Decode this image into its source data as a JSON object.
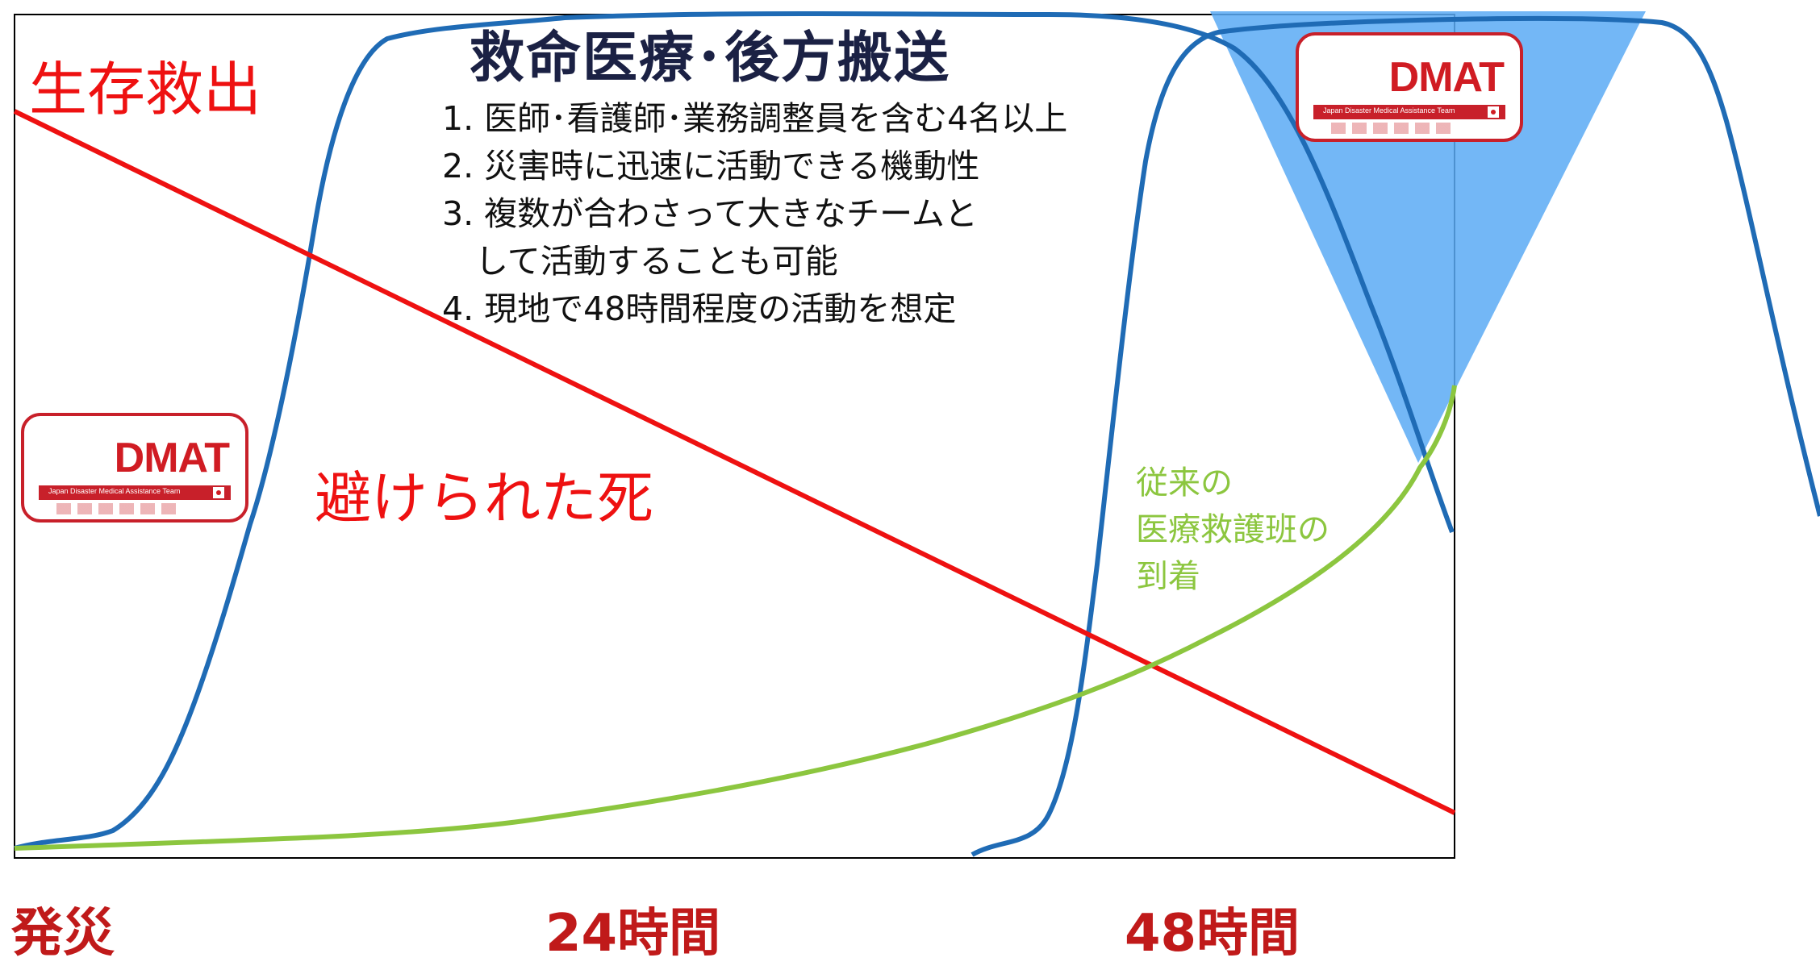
{
  "title": "救命医療･後方搬送",
  "requirements": [
    "1. 医師･看護師･業務調整員を含む4名以上",
    "2. 災害時に迅速に活動できる機動性",
    "3. 複数が合わさって大きなチームと",
    "　して活動することも可能",
    "4. 現地で48時間程度の活動を想定"
  ],
  "labels": {
    "survival_rescue": "生存救出",
    "avoidable_death": "避けられた死",
    "conventional_team": [
      "従来の",
      "医療救護班の",
      "到着"
    ]
  },
  "x_axis": {
    "start": "発災",
    "h24": "24時間",
    "h48": "48時間"
  },
  "logo": {
    "text": "DMAT",
    "subtitle": "Japan Disaster Medical Assistance Team"
  },
  "colors": {
    "blue_curve": "#1f6bb5",
    "red_line": "#ee1111",
    "green_curve": "#8cc63f",
    "triangle_fill": "#5aaaf5",
    "frame": "#000000",
    "axis_label": "#c01a1a"
  }
}
